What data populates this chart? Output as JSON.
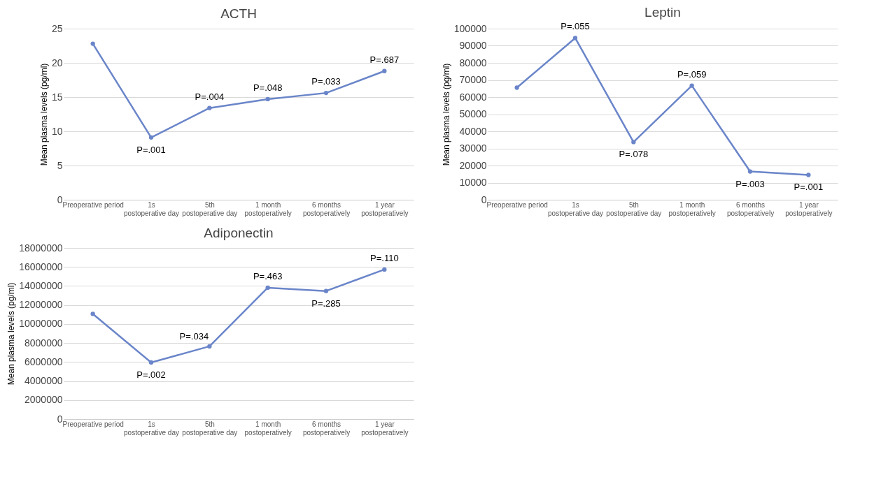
{
  "chart_data": [
    {
      "type": "line",
      "title": "ACTH",
      "ylabel": "Mean plasma levels (pg/ml)",
      "categories": [
        "Preoperative period",
        "1s\npostoperative day",
        "5th\npostoperative day",
        "1 month\npostoperatively",
        "6 months\npostoperatively",
        "1 year\npostoperatively"
      ],
      "series": [
        {
          "color": "#6a85c9",
          "values": [
            22.8,
            9.1,
            13.4,
            14.7,
            15.6,
            18.8
          ]
        }
      ],
      "ylim": [
        0,
        25
      ],
      "yticks": [
        0,
        5,
        10,
        15,
        20,
        25
      ],
      "grid": "y",
      "marker": "circle",
      "annotations": [
        {
          "text": "P=.001",
          "x": "1s\npostoperative day",
          "y": 9.1
        },
        {
          "text": "P=.004",
          "x": "5th\npostoperative day",
          "y": 13.4
        },
        {
          "text": "P=.048",
          "x": "1 month\npostoperatively",
          "y": 14.7
        },
        {
          "text": "P=.033",
          "x": "6 months\npostoperatively",
          "y": 15.6
        },
        {
          "text": "P=.687",
          "x": "1 year\npostoperatively",
          "y": 18.8
        }
      ]
    },
    {
      "type": "line",
      "title": "Leptin",
      "ylabel": "Mean plasma levels (pg/ml)",
      "categories": [
        "Preoperative period",
        "1s\npostoperative day",
        "5th\npostoperative day",
        "1 month\npostoperatively",
        "6 months\npostoperatively",
        "1 year\npostoperatively"
      ],
      "series": [
        {
          "color": "#6a85c9",
          "values": [
            65500,
            94500,
            33700,
            66700,
            16500,
            14500
          ]
        }
      ],
      "ylim": [
        0,
        100000
      ],
      "yticks": [
        0,
        10000,
        20000,
        30000,
        40000,
        50000,
        60000,
        70000,
        80000,
        90000,
        100000
      ],
      "grid": "y",
      "marker": "circle",
      "annotations": [
        {
          "text": "P=.055",
          "x": "1s\npostoperative day",
          "y": 94500
        },
        {
          "text": "P=.078",
          "x": "5th\npostoperative day",
          "y": 33700
        },
        {
          "text": "P=.059",
          "x": "1 month\npostoperatively",
          "y": 66700
        },
        {
          "text": "P=.003",
          "x": "6 months\npostoperatively",
          "y": 16500
        },
        {
          "text": "P=.001",
          "x": "1 year\npostoperatively",
          "y": 14500
        }
      ]
    },
    {
      "type": "line",
      "title": "Adiponectin",
      "ylabel": "Mean plasma levels (pg/ml)",
      "categories": [
        "Preoperative period",
        "1s\npostoperative day",
        "5th\npostoperative day",
        "1 month\npostoperatively",
        "6 months\npostoperatively",
        "1 year\npostoperatively"
      ],
      "series": [
        {
          "color": "#6a85c9",
          "values": [
            11060000,
            5950000,
            7650000,
            13820000,
            13470000,
            15730000
          ]
        }
      ],
      "ylim": [
        0,
        18000000
      ],
      "yticks": [
        0,
        2000000,
        4000000,
        6000000,
        8000000,
        10000000,
        12000000,
        14000000,
        16000000,
        18000000
      ],
      "grid": "y",
      "marker": "circle",
      "annotations": [
        {
          "text": "P=.002",
          "x": "1s\npostoperative day",
          "y": 5950000
        },
        {
          "text": "P=.034",
          "x": "5th\npostoperative day",
          "y": 7650000
        },
        {
          "text": "P=.463",
          "x": "1 month\npostoperatively",
          "y": 13820000
        },
        {
          "text": "P=.285",
          "x": "6 months\npostoperatively",
          "y": 13470000
        },
        {
          "text": "P=.110",
          "x": "1 year\npostoperatively",
          "y": 15730000
        }
      ]
    }
  ]
}
